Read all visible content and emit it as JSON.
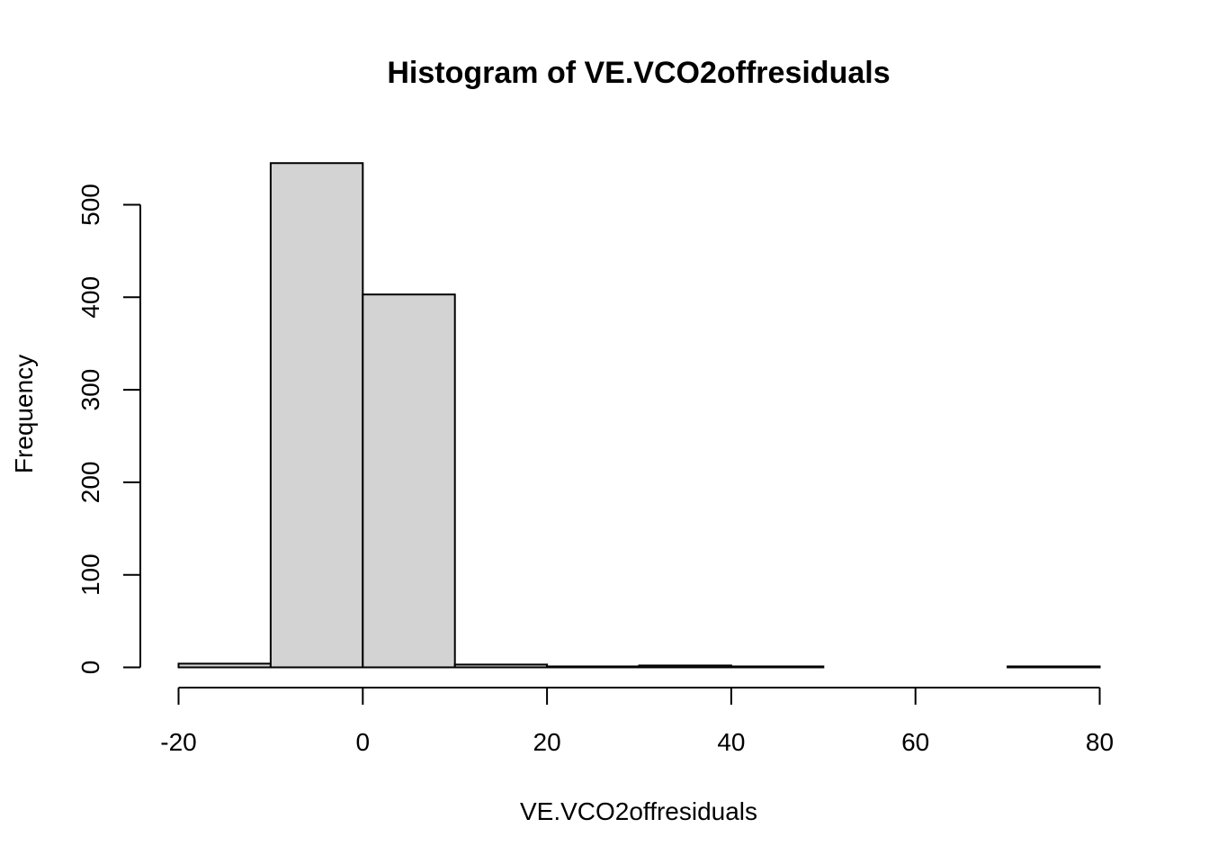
{
  "chart_data": {
    "type": "bar",
    "subtype": "histogram",
    "title": "Histogram of VE.VCO2offresiduals",
    "xlabel": "VE.VCO2offresiduals",
    "ylabel": "Frequency",
    "bins": [
      {
        "start": -20,
        "end": -10,
        "count": 4
      },
      {
        "start": -10,
        "end": 0,
        "count": 545
      },
      {
        "start": 0,
        "end": 10,
        "count": 403
      },
      {
        "start": 10,
        "end": 20,
        "count": 3
      },
      {
        "start": 20,
        "end": 30,
        "count": 1
      },
      {
        "start": 30,
        "end": 40,
        "count": 2
      },
      {
        "start": 40,
        "end": 50,
        "count": 1
      },
      {
        "start": 50,
        "end": 60,
        "count": 0
      },
      {
        "start": 60,
        "end": 70,
        "count": 0
      },
      {
        "start": 70,
        "end": 80,
        "count": 1
      }
    ],
    "xlim": [
      -20,
      80
    ],
    "ylim": [
      0,
      545
    ],
    "xticks": [
      "-20",
      "0",
      "20",
      "40",
      "60",
      "80"
    ],
    "yticks": [
      "0",
      "100",
      "200",
      "300",
      "400",
      "500"
    ],
    "bar_fill": "#d3d3d3",
    "bar_stroke": "#000000",
    "grid": false,
    "legend": "none"
  }
}
